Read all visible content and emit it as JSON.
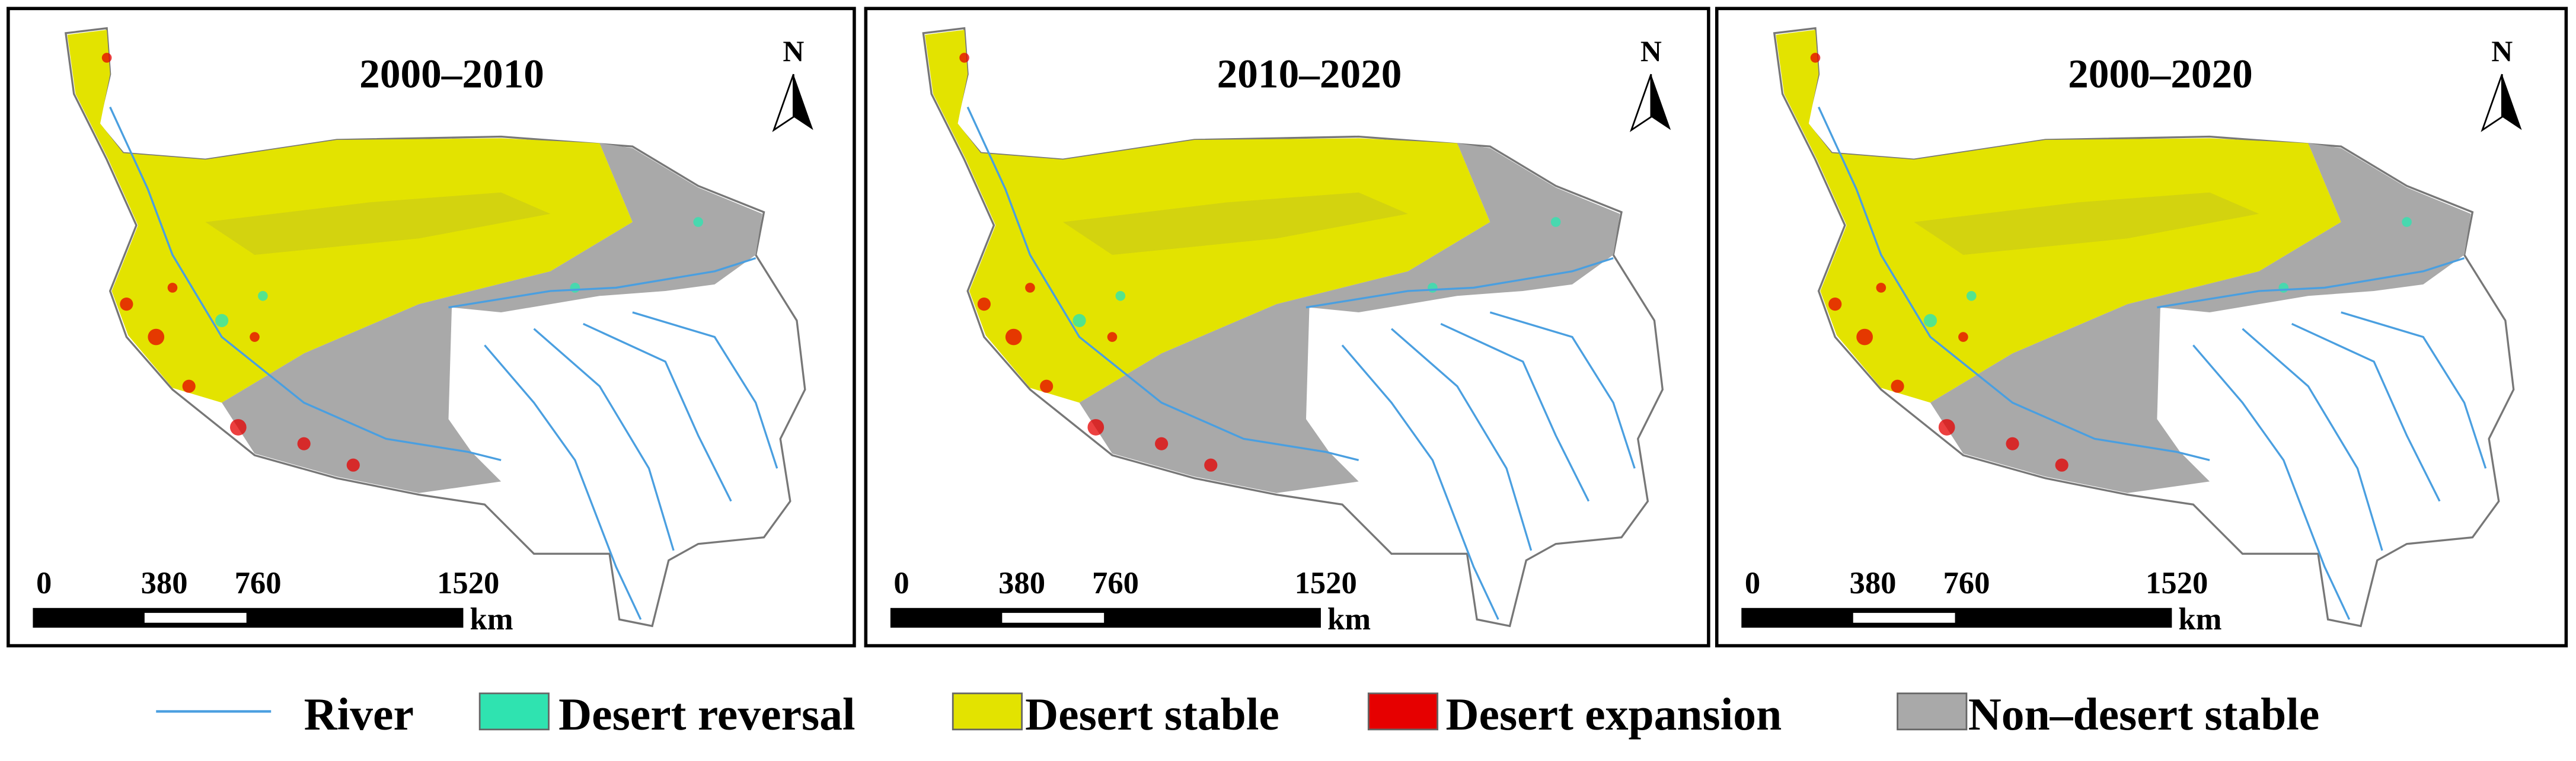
{
  "panels": [
    {
      "title": "2000–2010",
      "north": "N",
      "scale_labels": [
        "0",
        "380",
        "760",
        "1520"
      ],
      "scale_unit": "km"
    },
    {
      "title": "2010–2020",
      "north": "N",
      "scale_labels": [
        "0",
        "380",
        "760",
        "1520"
      ],
      "scale_unit": "km"
    },
    {
      "title": "2000–2020",
      "north": "N",
      "scale_labels": [
        "0",
        "380",
        "760",
        "1520"
      ],
      "scale_unit": "km"
    }
  ],
  "legend": [
    {
      "label": "River",
      "color": "#4a9fe0"
    },
    {
      "label": "Desert reversal",
      "color": "#2fe3b0"
    },
    {
      "label": "Desert stable",
      "color": "#e3e300"
    },
    {
      "label": "Desert expansion",
      "color": "#e60000"
    },
    {
      "label": "Non–desert stable",
      "color": "#a9a9a9"
    }
  ]
}
